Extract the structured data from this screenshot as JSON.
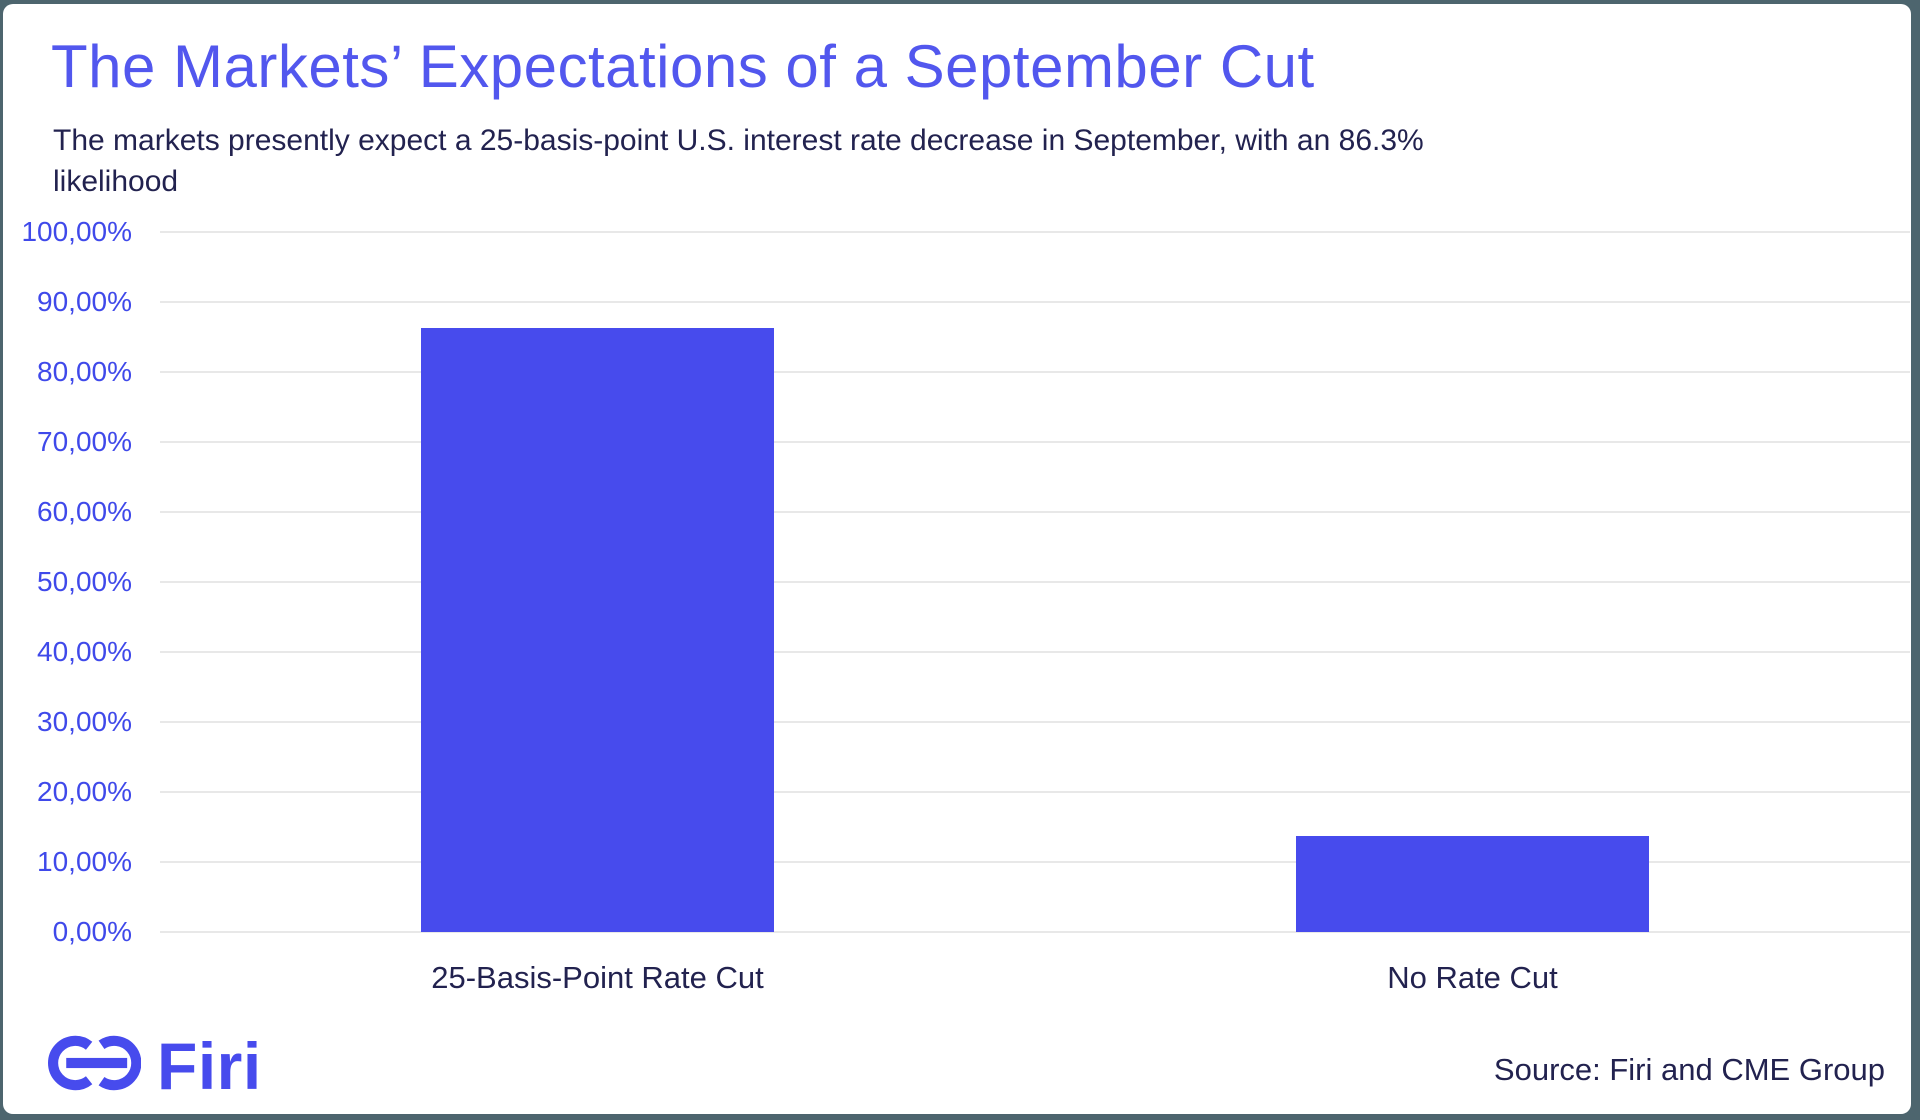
{
  "header": {
    "title": "The Markets’ Expectations of a September Cut",
    "subtitle_line1": "The markets presently expect a 25-basis-point U.S. interest rate decrease in September, with an 86.3%",
    "subtitle_line2": "likelihood"
  },
  "chart_data": {
    "type": "bar",
    "title": "The Markets’ Expectations of a September Cut",
    "subtitle": "The markets presently expect a 25-basis-point U.S. interest rate decrease in September, with an 86.3% likelihood",
    "categories": [
      "25-Basis-Point Rate Cut",
      "No Rate Cut"
    ],
    "values": [
      86.3,
      13.7
    ],
    "xlabel": "",
    "ylabel": "",
    "ylim": [
      0,
      100
    ],
    "ytick_values": [
      100,
      90,
      80,
      70,
      60,
      50,
      40,
      30,
      20,
      10,
      0
    ],
    "ytick_labels": [
      "100,00%",
      "90,00%",
      "80,00%",
      "70,00%",
      "60,00%",
      "50,00%",
      "40,00%",
      "30,00%",
      "20,00%",
      "10,00%",
      "0,00%"
    ],
    "grid": "horizontal",
    "legend": "none"
  },
  "footer": {
    "logo_text": "Firi",
    "source": "Source: Firi and CME Group"
  },
  "colors": {
    "title": "#5257EE",
    "subtitle_text": "#22224F",
    "axis_tick": "#3F49EA",
    "bar": "#474BED",
    "gridline": "#E8E8E8",
    "frame_background": "#4D656E",
    "card_background": "#FFFFFF"
  }
}
